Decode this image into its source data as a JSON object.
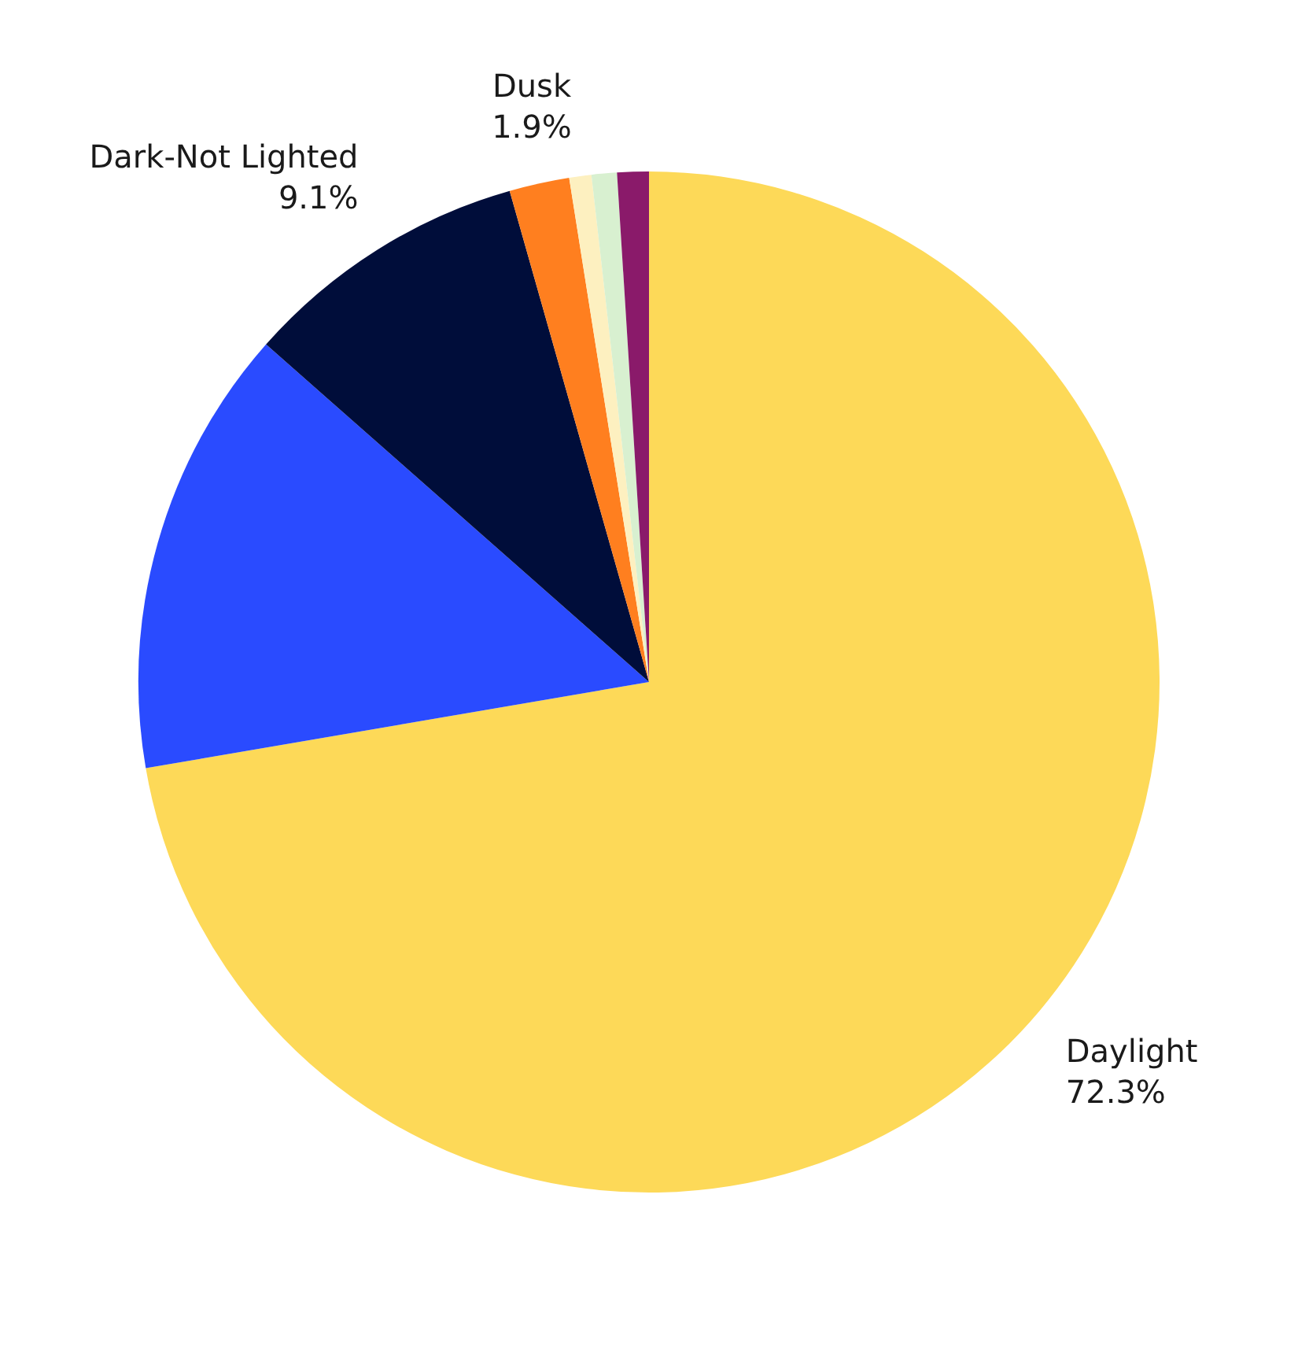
{
  "chart_data": {
    "type": "pie",
    "categories": [
      "Daylight",
      null,
      "Dark-Not Lighted",
      "Dusk",
      null,
      null,
      null
    ],
    "values": [
      72.3,
      14.2,
      9.1,
      1.9,
      0.7,
      0.8,
      1.0
    ],
    "value_labels": [
      "72.3%",
      null,
      "9.1%",
      "1.9%",
      null,
      null,
      null
    ],
    "colors": [
      "#fdd958",
      "#2a4bff",
      "#000d3a",
      "#ff7f1f",
      "#fdf0c0",
      "#d8f0d0",
      "#8a1a6a"
    ],
    "legend": false
  }
}
